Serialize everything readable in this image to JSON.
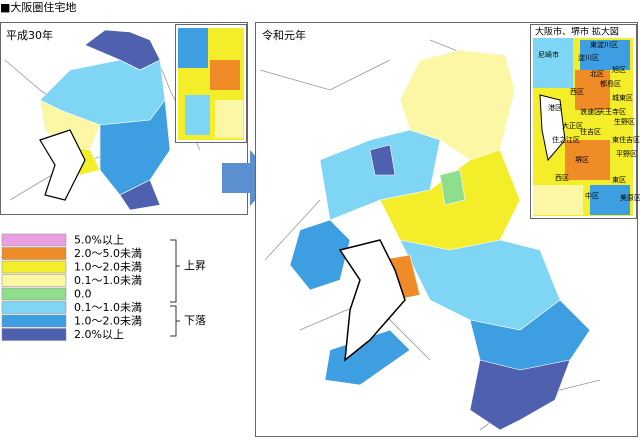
{
  "header": {
    "title": "■大阪圏住宅地"
  },
  "panels": [
    {
      "label": "平成30年"
    },
    {
      "label": "令和元年"
    }
  ],
  "inset": {
    "title": "大阪市、堺市 拡大図",
    "labels": [
      "尼崎市",
      "東淀川区",
      "淀川区",
      "北区",
      "旭区",
      "都島区",
      "城東区",
      "西区",
      "港区",
      "大正区",
      "浪速区",
      "天王寺区",
      "生野区",
      "住之江区",
      "住吉区",
      "東住吉区",
      "平野区",
      "堺区",
      "西区",
      "中区",
      "東区",
      "美原区"
    ]
  },
  "legend": {
    "items": [
      {
        "label": "5.0%以上",
        "color": "#e8a0e0"
      },
      {
        "label": "2.0～5.0未満",
        "color": "#f08c28"
      },
      {
        "label": "1.0～2.0未満",
        "color": "#f4ee2a"
      },
      {
        "label": "0.1～1.0未満",
        "color": "#fbf7a4"
      },
      {
        "label": "0.0",
        "color": "#8ede8c"
      },
      {
        "label": "0.1～1.0未満",
        "color": "#7fd6f4"
      },
      {
        "label": "1.0～2.0未満",
        "color": "#3d9fe2"
      },
      {
        "label": "2.0%以上",
        "color": "#4e60ae"
      }
    ],
    "groups": [
      {
        "label": "上昇"
      },
      {
        "label": "下落"
      }
    ]
  }
}
